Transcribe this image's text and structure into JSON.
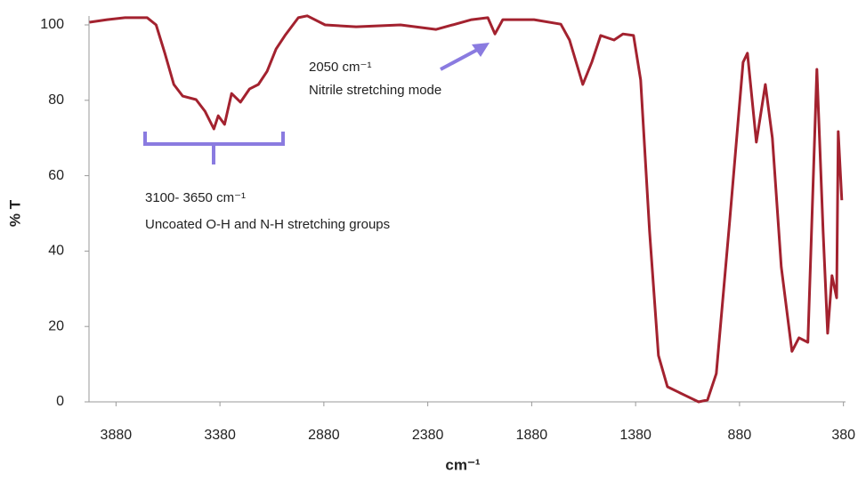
{
  "chart_data": {
    "type": "line",
    "xlabel": "cm⁻¹",
    "ylabel": "% T",
    "xlim": [
      4010,
      370
    ],
    "xticks": [
      3880,
      3380,
      2880,
      2380,
      1880,
      1380,
      880,
      380
    ],
    "ylim": [
      0,
      100
    ],
    "yticks": [
      0,
      20,
      40,
      60,
      80,
      100
    ],
    "grid": false,
    "annotations": [
      "2050 cm⁻¹",
      "Nitrile stretching mode",
      "3100- 3650 cm⁻¹",
      "Uncoated O-H and N-H stretching groups"
    ],
    "series": [
      {
        "color": "#a3222f",
        "x": [
          4008,
          3923,
          3837,
          3730,
          3687,
          3645,
          3602,
          3559,
          3495,
          3452,
          3409,
          3388,
          3358,
          3324,
          3281,
          3238,
          3195,
          3153,
          3110,
          3067,
          3003,
          2960,
          2874,
          2725,
          2511,
          2340,
          2169,
          2091,
          2057,
          2019,
          1869,
          1740,
          1698,
          1634,
          1591,
          1548,
          1484,
          1441,
          1390,
          1356,
          1313,
          1270,
          1227,
          1141,
          1077,
          1034,
          992,
          928,
          863,
          842,
          799,
          756,
          722,
          679,
          628,
          594,
          551,
          508,
          478,
          456,
          435,
          413,
          405,
          388
        ],
        "values": [
          100.7,
          101.4,
          101.9,
          101.9,
          100,
          92.5,
          84.2,
          81.1,
          80.2,
          77.1,
          72.4,
          75.9,
          73.6,
          81.8,
          79.5,
          83,
          84.2,
          87.7,
          93.6,
          97.2,
          101.9,
          102.4,
          100,
          99.5,
          100,
          98.8,
          101.4,
          101.9,
          97.6,
          101.4,
          101.4,
          100.2,
          96,
          84.2,
          90.1,
          97.2,
          96,
          97.6,
          97.2,
          85.4,
          45.3,
          12.3,
          4,
          1.7,
          0,
          0.5,
          7.5,
          47.6,
          90.1,
          92.5,
          68.9,
          84.2,
          70,
          35.8,
          13.4,
          17,
          15.8,
          88.2,
          45.3,
          18.2,
          33.5,
          27.6,
          71.7,
          53.5
        ]
      }
    ]
  }
}
